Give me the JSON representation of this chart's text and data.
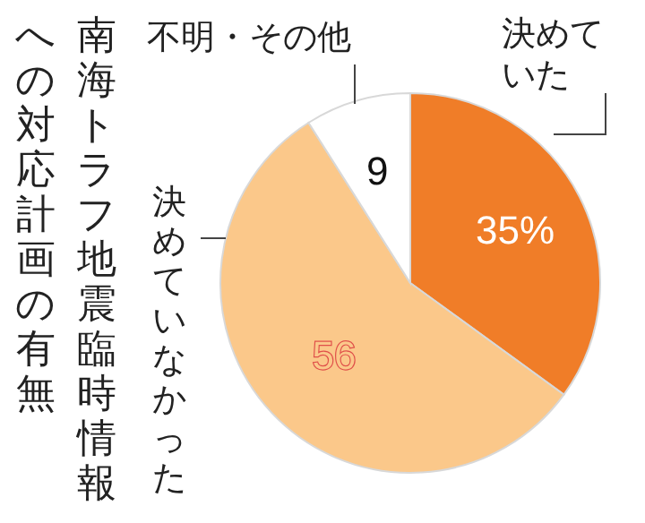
{
  "chart_data": {
    "type": "pie",
    "title": "南海トラフ地震臨時情報への対応計画の有無",
    "categories": [
      "決めていた",
      "決めていなかった",
      "不明・その他"
    ],
    "values": [
      35,
      56,
      9
    ],
    "value_labels": [
      "35%",
      "56",
      "9"
    ],
    "colors": [
      "#f07d28",
      "#fbc88a",
      "#ffffff"
    ],
    "legend": false
  }
}
